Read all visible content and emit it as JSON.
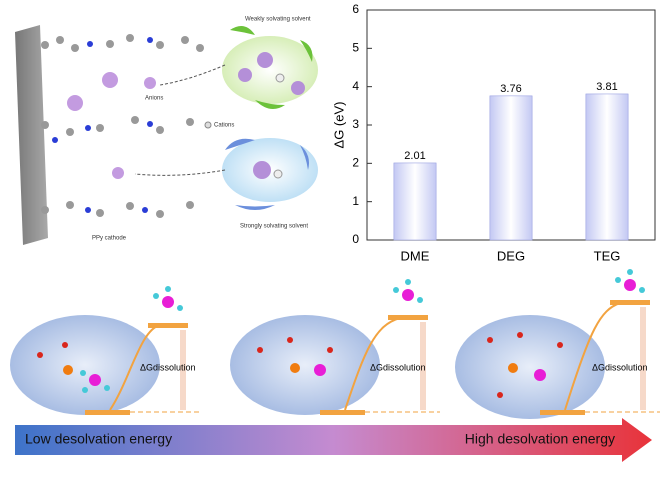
{
  "chart_data": {
    "type": "bar",
    "y_label": "ΔG (eV)",
    "categories": [
      "DME",
      "DEG",
      "TEG"
    ],
    "values": [
      2.01,
      3.76,
      3.81
    ],
    "color": "#c3c8f3",
    "ylim": [
      0,
      6
    ],
    "yticks": [
      0,
      1,
      2,
      3,
      4,
      5,
      6
    ]
  },
  "illustration": {
    "weak": "Weakly solvating solvent",
    "anions": "Anions",
    "cations": "Cations",
    "strong": "Strongly solvating solvent",
    "cathode": "PPy cathode"
  },
  "bottom": {
    "panels": [
      {
        "label": "ΔGdissolution"
      },
      {
        "label": "ΔGdissolution"
      },
      {
        "label": "ΔGdissolution"
      }
    ],
    "low": "Low desolvation energy",
    "high": "High desolvation energy"
  }
}
